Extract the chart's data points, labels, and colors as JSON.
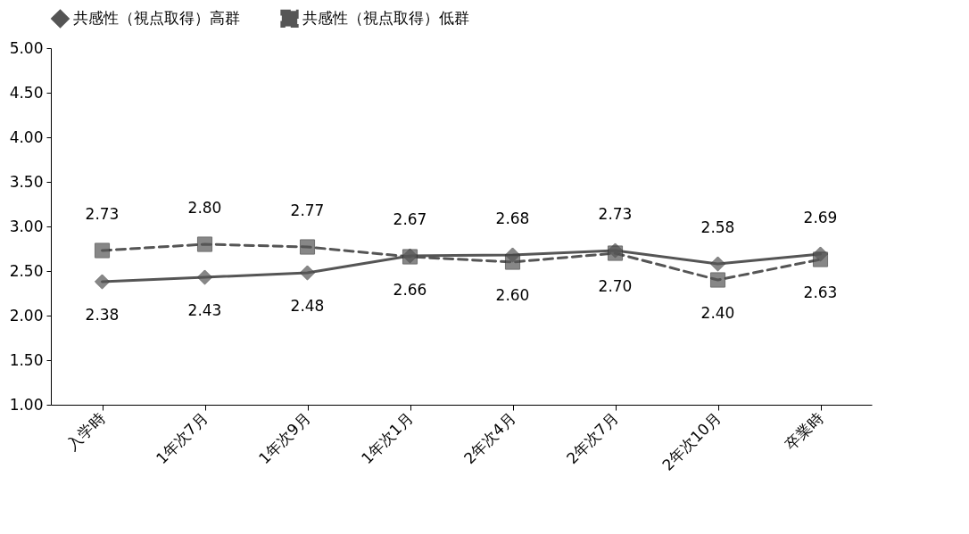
{
  "chart_data": {
    "type": "line",
    "categories": [
      "入学時",
      "1年次7月",
      "1年次9月",
      "1年次1月",
      "2年次4月",
      "2年次7月",
      "2年次10月",
      "卒業時"
    ],
    "series": [
      {
        "name": "共感性（視点取得）高群",
        "color": "#555555",
        "marker": "diamond",
        "line_style": "solid",
        "values": [
          2.38,
          2.43,
          2.48,
          2.67,
          2.68,
          2.73,
          2.58,
          2.69
        ],
        "value_labels": [
          "2.38",
          "2.43",
          "2.48",
          "2.67",
          "2.68",
          "2.73",
          "2.58",
          "2.69"
        ]
      },
      {
        "name": "共感性（視点取得）低群",
        "color": "#555555",
        "marker": "square",
        "line_style": "dashed",
        "values": [
          2.73,
          2.8,
          2.77,
          2.66,
          2.6,
          2.7,
          2.4,
          2.63
        ],
        "value_labels": [
          "2.73",
          "2.80",
          "2.77",
          "2.66",
          "2.60",
          "2.70",
          "2.40",
          "2.63"
        ]
      }
    ],
    "ylim": [
      1,
      5
    ],
    "yticks": [
      {
        "value": 1,
        "label": "1.00"
      },
      {
        "value": 1.5,
        "label": "1.50"
      },
      {
        "value": 2,
        "label": "2.00"
      },
      {
        "value": 2.5,
        "label": "2.50"
      },
      {
        "value": 3,
        "label": "3.00"
      },
      {
        "value": 3.5,
        "label": "3.50"
      },
      {
        "value": 4,
        "label": "4.00"
      },
      {
        "value": 4.5,
        "label": "4.50"
      },
      {
        "value": 5,
        "label": "5.00"
      }
    ],
    "grid": false,
    "legend": "top"
  }
}
